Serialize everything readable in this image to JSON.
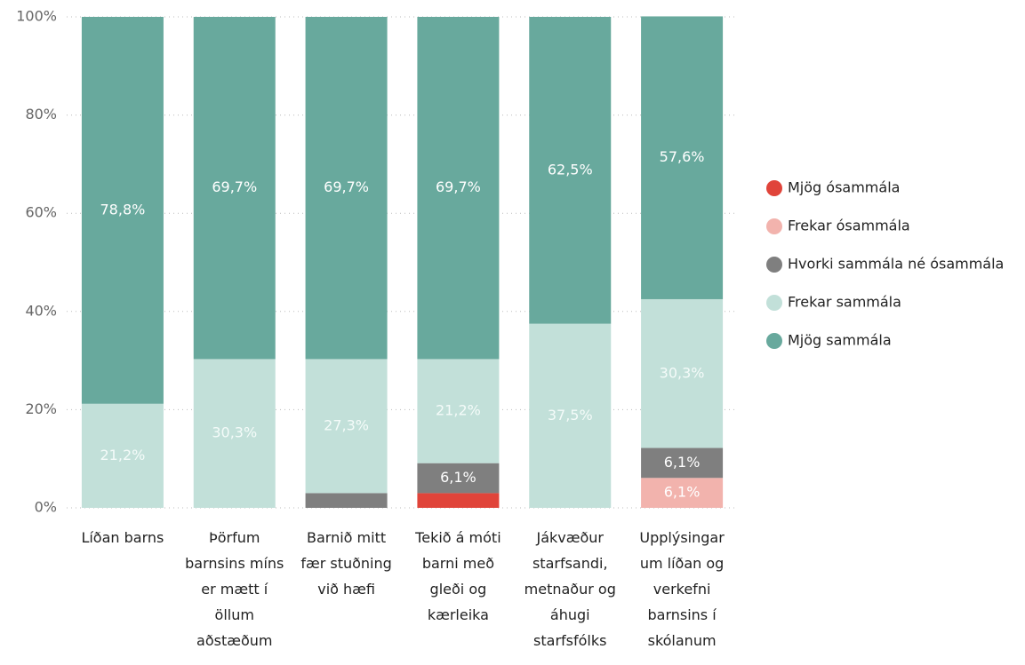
{
  "chart_data": {
    "type": "stacked_bar",
    "categories": [
      "Líðan barns",
      "Þörfum barnsins míns er mætt í öllum aðstæðum",
      "Barnið mitt fær stuðning við hæfi",
      "Tekið á móti barni með gleði og kærleika",
      "Jákvæður starfsandi, metnaður og áhugi starfsfólks",
      "Upplýsingar um líðan og verkefni barnsins í skólanum"
    ],
    "series": [
      {
        "name": "Mjög ósammála",
        "color": "#e0443a",
        "values": [
          0,
          0,
          0,
          3.0,
          0,
          0
        ],
        "value_labels": [
          null,
          null,
          null,
          null,
          null,
          null
        ]
      },
      {
        "name": "Frekar ósammála",
        "color": "#f2b3ad",
        "values": [
          0,
          0,
          0,
          0,
          0,
          6.1
        ],
        "value_labels": [
          null,
          null,
          null,
          null,
          null,
          "6,1%"
        ]
      },
      {
        "name": "Hvorki sammála né ósammála",
        "color": "#7f7f7f",
        "values": [
          0,
          0,
          3.0,
          6.1,
          0,
          6.1
        ],
        "value_labels": [
          null,
          null,
          null,
          "6,1%",
          null,
          "6,1%"
        ]
      },
      {
        "name": "Frekar sammála",
        "color": "#c2e0d9",
        "values": [
          21.2,
          30.3,
          27.3,
          21.2,
          37.5,
          30.3
        ],
        "value_labels": [
          "21,2%",
          "30,3%",
          "27,3%",
          "21,2%",
          "37,5%",
          "30,3%"
        ]
      },
      {
        "name": "Mjög sammála",
        "color": "#68a99d",
        "values": [
          78.8,
          69.7,
          69.7,
          69.7,
          62.5,
          57.6
        ],
        "value_labels": [
          "78,8%",
          "69,7%",
          "69,7%",
          "69,7%",
          "62,5%",
          "57,6%"
        ]
      }
    ],
    "ylim": [
      0,
      100
    ],
    "yticks": [
      {
        "value": 0,
        "label": "0%"
      },
      {
        "value": 20,
        "label": "20%"
      },
      {
        "value": 40,
        "label": "40%"
      },
      {
        "value": 60,
        "label": "60%"
      },
      {
        "value": 80,
        "label": "80%"
      },
      {
        "value": 100,
        "label": "100%"
      }
    ],
    "grid": true,
    "legend": "right"
  }
}
